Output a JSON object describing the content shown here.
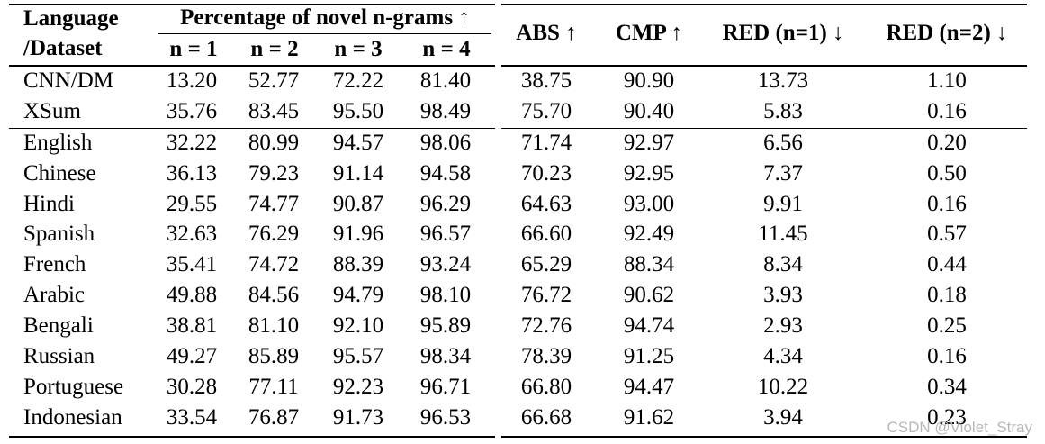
{
  "header": {
    "lang_line1": "Language",
    "lang_line2": "/Dataset",
    "novel_group": "Percentage of novel n-grams ↑",
    "n_cols": [
      "n = 1",
      "n = 2",
      "n = 3",
      "n = 4"
    ],
    "metrics": [
      "ABS ↑",
      "CMP ↑",
      "RED (n=1) ↓",
      "RED (n=2) ↓"
    ]
  },
  "rows": [
    {
      "name": "CNN/DM",
      "values": [
        "13.20",
        "52.77",
        "72.22",
        "81.40",
        "38.75",
        "90.90",
        "13.73",
        "1.10"
      ]
    },
    {
      "name": "XSum",
      "values": [
        "35.76",
        "83.45",
        "95.50",
        "98.49",
        "75.70",
        "90.40",
        "5.83",
        "0.16"
      ]
    },
    {
      "name": "English",
      "values": [
        "32.22",
        "80.99",
        "94.57",
        "98.06",
        "71.74",
        "92.97",
        "6.56",
        "0.20"
      ]
    },
    {
      "name": "Chinese",
      "values": [
        "36.13",
        "79.23",
        "91.14",
        "94.58",
        "70.23",
        "92.95",
        "7.37",
        "0.50"
      ]
    },
    {
      "name": "Hindi",
      "values": [
        "29.55",
        "74.77",
        "90.87",
        "96.29",
        "64.63",
        "93.00",
        "9.91",
        "0.16"
      ]
    },
    {
      "name": "Spanish",
      "values": [
        "32.63",
        "76.29",
        "91.96",
        "96.57",
        "66.60",
        "92.49",
        "11.45",
        "0.57"
      ]
    },
    {
      "name": "French",
      "values": [
        "35.41",
        "74.72",
        "88.39",
        "93.24",
        "65.29",
        "88.34",
        "8.34",
        "0.44"
      ]
    },
    {
      "name": "Arabic",
      "values": [
        "49.88",
        "84.56",
        "94.79",
        "98.10",
        "76.72",
        "90.62",
        "3.93",
        "0.18"
      ]
    },
    {
      "name": "Bengali",
      "values": [
        "38.81",
        "81.10",
        "92.10",
        "95.89",
        "72.76",
        "94.74",
        "2.93",
        "0.25"
      ]
    },
    {
      "name": "Russian",
      "values": [
        "49.27",
        "85.89",
        "95.57",
        "98.34",
        "78.39",
        "91.25",
        "4.34",
        "0.16"
      ]
    },
    {
      "name": "Portuguese",
      "values": [
        "30.28",
        "77.11",
        "92.23",
        "96.71",
        "66.80",
        "94.47",
        "10.22",
        "0.34"
      ]
    },
    {
      "name": "Indonesian",
      "values": [
        "33.54",
        "76.87",
        "91.73",
        "96.53",
        "66.68",
        "91.62",
        "3.94",
        "0.23"
      ]
    }
  ],
  "watermark": "CSDN @Violet_Stray"
}
